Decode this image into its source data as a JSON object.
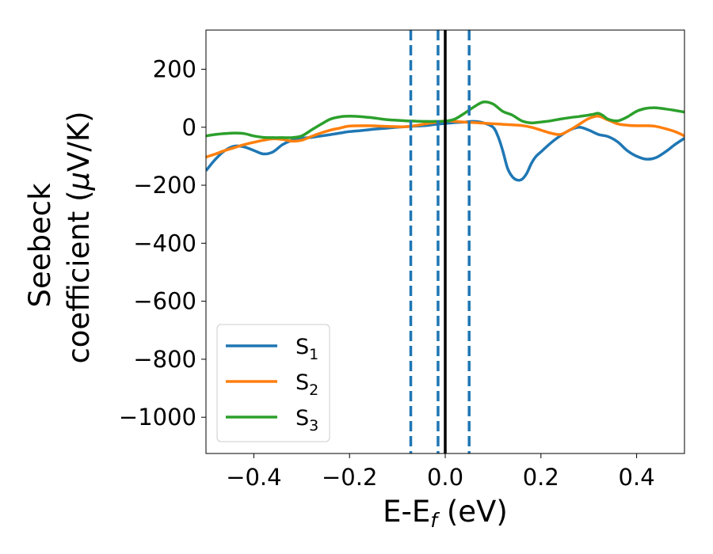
{
  "chart_data": {
    "type": "line",
    "title": "",
    "xlabel": "E-E",
    "xlabel_sub": "f",
    "xlabel_unit": " (eV)",
    "ylabel_line1": "Seebeck",
    "ylabel_line2_prefix": "coefficient  (",
    "ylabel_line2_mu": "μ",
    "ylabel_line2_suffix": "V/K)",
    "xlim": [
      -0.5,
      0.5
    ],
    "ylim": [
      -1125,
      335
    ],
    "xticks": [
      -0.4,
      -0.2,
      0.0,
      0.2,
      0.4
    ],
    "xtick_labels": [
      "−0.4",
      "−0.2",
      "0.0",
      "0.2",
      "0.4"
    ],
    "yticks": [
      200,
      0,
      -200,
      -400,
      -600,
      -800,
      -1000
    ],
    "ytick_labels": [
      "200",
      "0",
      "−200",
      "−400",
      "−600",
      "−800",
      "−1000"
    ],
    "grid": false,
    "legend_position": "lower-left",
    "vlines": [
      {
        "x": 0.0,
        "style": "solid",
        "color": "#000000"
      },
      {
        "x": -0.072,
        "style": "dashed",
        "color": "#1f77b4"
      },
      {
        "x": -0.015,
        "style": "dashed",
        "color": "#1f77b4"
      },
      {
        "x": 0.05,
        "style": "dashed",
        "color": "#1f77b4"
      }
    ],
    "series": [
      {
        "name": "S",
        "name_sub": "1",
        "color": "#1f77b4",
        "x": [
          -0.5,
          -0.48,
          -0.46,
          -0.44,
          -0.42,
          -0.4,
          -0.38,
          -0.36,
          -0.34,
          -0.32,
          -0.3,
          -0.28,
          -0.25,
          -0.22,
          -0.2,
          -0.18,
          -0.15,
          -0.12,
          -0.1,
          -0.08,
          -0.06,
          -0.04,
          -0.02,
          0.0,
          0.02,
          0.04,
          0.06,
          0.08,
          0.1,
          0.11,
          0.12,
          0.13,
          0.14,
          0.15,
          0.16,
          0.17,
          0.18,
          0.19,
          0.2,
          0.22,
          0.24,
          0.26,
          0.28,
          0.3,
          0.32,
          0.34,
          0.36,
          0.38,
          0.4,
          0.42,
          0.44,
          0.46,
          0.48,
          0.5
        ],
        "y": [
          -150,
          -110,
          -80,
          -65,
          -68,
          -80,
          -92,
          -85,
          -60,
          -45,
          -38,
          -35,
          -28,
          -20,
          -15,
          -12,
          -7,
          -3,
          0,
          2,
          4,
          6,
          10,
          13,
          16,
          18,
          20,
          15,
          0,
          -30,
          -80,
          -140,
          -170,
          -182,
          -180,
          -160,
          -125,
          -100,
          -85,
          -55,
          -30,
          -10,
          0,
          -10,
          -25,
          -32,
          -50,
          -80,
          -100,
          -110,
          -105,
          -85,
          -60,
          -38
        ]
      },
      {
        "name": "S",
        "name_sub": "2",
        "color": "#ff7f0e",
        "x": [
          -0.5,
          -0.48,
          -0.46,
          -0.44,
          -0.42,
          -0.4,
          -0.38,
          -0.36,
          -0.34,
          -0.32,
          -0.3,
          -0.28,
          -0.26,
          -0.24,
          -0.22,
          -0.2,
          -0.16,
          -0.12,
          -0.08,
          -0.04,
          -0.02,
          0.0,
          0.02,
          0.04,
          0.06,
          0.08,
          0.1,
          0.12,
          0.14,
          0.16,
          0.18,
          0.2,
          0.22,
          0.24,
          0.26,
          0.28,
          0.3,
          0.32,
          0.34,
          0.36,
          0.38,
          0.4,
          0.42,
          0.44,
          0.46,
          0.48,
          0.5
        ],
        "y": [
          -103,
          -92,
          -80,
          -70,
          -60,
          -52,
          -45,
          -40,
          -42,
          -48,
          -45,
          -32,
          -20,
          -10,
          -3,
          4,
          5,
          3,
          2,
          12,
          17,
          22,
          20,
          18,
          16,
          14,
          12,
          10,
          8,
          6,
          0,
          -10,
          -20,
          -25,
          -10,
          10,
          30,
          38,
          25,
          12,
          7,
          5,
          5,
          3,
          -5,
          -15,
          -30
        ]
      },
      {
        "name": "S",
        "name_sub": "3",
        "color": "#2ca02c",
        "x": [
          -0.5,
          -0.48,
          -0.46,
          -0.44,
          -0.42,
          -0.4,
          -0.38,
          -0.36,
          -0.34,
          -0.32,
          -0.3,
          -0.28,
          -0.26,
          -0.24,
          -0.22,
          -0.2,
          -0.18,
          -0.16,
          -0.14,
          -0.12,
          -0.1,
          -0.08,
          -0.06,
          -0.04,
          -0.02,
          0.0,
          0.02,
          0.04,
          0.06,
          0.08,
          0.1,
          0.12,
          0.14,
          0.16,
          0.18,
          0.2,
          0.22,
          0.24,
          0.26,
          0.28,
          0.3,
          0.31,
          0.32,
          0.33,
          0.34,
          0.36,
          0.38,
          0.4,
          0.42,
          0.44,
          0.46,
          0.48,
          0.5
        ],
        "y": [
          -30,
          -25,
          -22,
          -20,
          -22,
          -30,
          -35,
          -36,
          -36,
          -36,
          -30,
          -10,
          10,
          28,
          36,
          38,
          37,
          34,
          30,
          26,
          24,
          22,
          21,
          20,
          20,
          21,
          28,
          48,
          70,
          87,
          80,
          55,
          42,
          22,
          15,
          18,
          22,
          28,
          33,
          37,
          42,
          45,
          48,
          40,
          28,
          22,
          35,
          55,
          65,
          67,
          63,
          58,
          52
        ]
      }
    ]
  }
}
